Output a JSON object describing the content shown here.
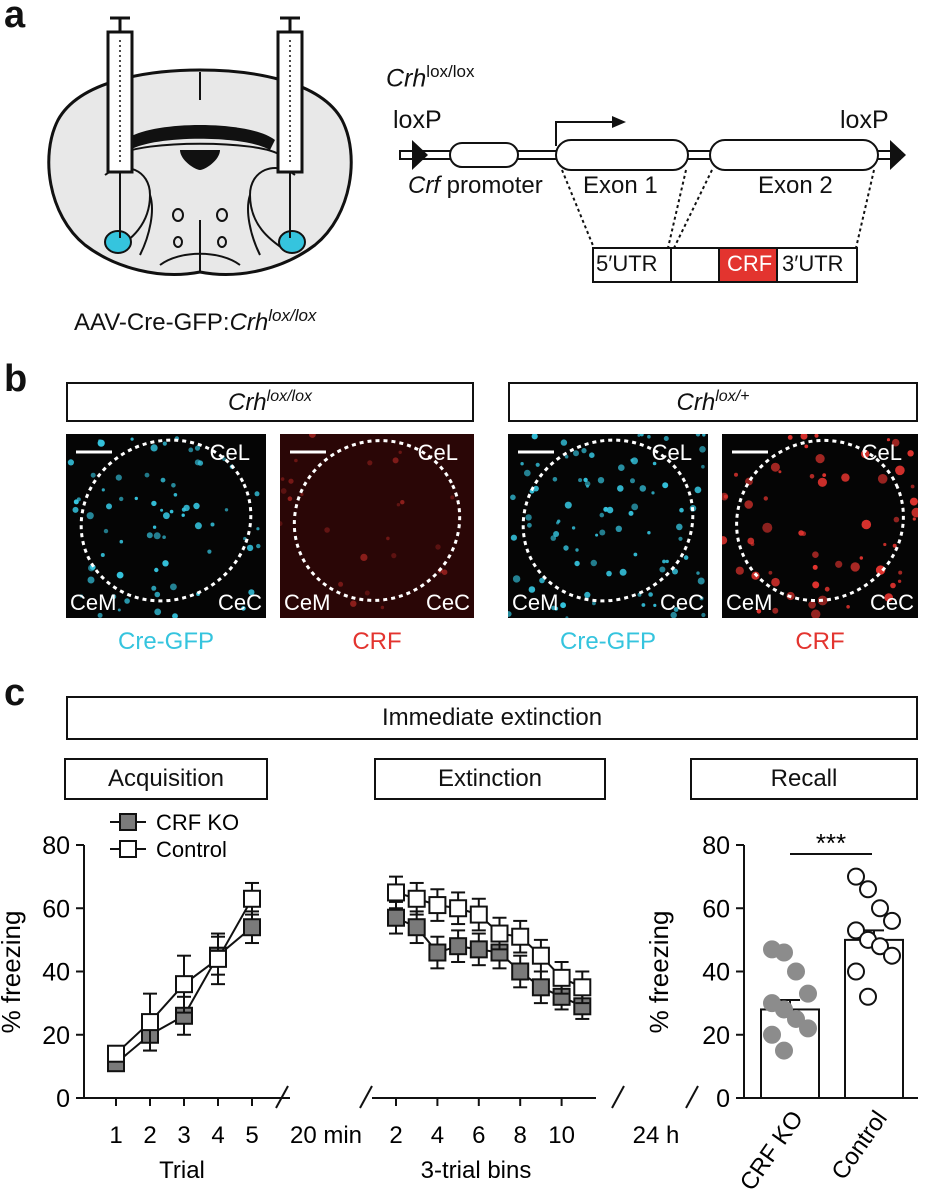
{
  "panels": {
    "a": "a",
    "b": "b",
    "c": "c"
  },
  "panel_a": {
    "brain_label_prefix": "AAV-Cre-GFP:",
    "brain_label_italic": "Crh",
    "brain_label_sup": "lox/lox",
    "construct_title_italic": "Crh",
    "construct_title_sup": "lox/lox",
    "loxp_left": "loxP",
    "loxp_right": "loxP",
    "promoter_italic": "Crf",
    "promoter_text": " promoter",
    "exon1": "Exon 1",
    "exon2": "Exon 2",
    "utr5": "5′UTR",
    "crf": "CRF",
    "utr3": "3′UTR"
  },
  "panel_b": {
    "group1_italic": "Crh",
    "group1_sup": "lox/lox",
    "group2_italic": "Crh",
    "group2_sup": "lox/+",
    "region_cel": "CeL",
    "region_cem": "CeM",
    "region_cec": "CeC",
    "caption_gfp": "Cre-GFP",
    "caption_crf": "CRF",
    "colors": {
      "gfp": "#35c4de",
      "crf": "#e3342f"
    }
  },
  "panel_c": {
    "header": "Immediate extinction",
    "phases": [
      "Acquisition",
      "Extinction",
      "Recall"
    ],
    "legend": [
      "CRF KO",
      "Control"
    ],
    "ylabel": "% freezing",
    "xlabel_trial": "Trial",
    "xlabel_bins": "3-trial bins",
    "gap1": "20 min",
    "gap2": "24 h",
    "significance": "***",
    "recall_categories": [
      "CRF KO",
      "Control"
    ]
  },
  "chart_data": [
    {
      "type": "line",
      "title": "Acquisition",
      "xlabel": "Trial",
      "ylabel": "% freezing",
      "ylim": [
        0,
        80
      ],
      "yticks": [
        0,
        20,
        40,
        60,
        80
      ],
      "x": [
        1,
        2,
        3,
        4,
        5
      ],
      "series": [
        {
          "name": "CRF KO",
          "values": [
            11,
            20,
            26,
            45,
            54
          ],
          "sem": [
            2,
            5,
            6,
            6,
            5
          ]
        },
        {
          "name": "Control",
          "values": [
            14,
            24,
            36,
            44,
            63
          ],
          "sem": [
            2,
            9,
            9,
            8,
            5
          ]
        }
      ]
    },
    {
      "type": "line",
      "title": "Extinction",
      "xlabel": "3-trial bins",
      "ylim": [
        0,
        80
      ],
      "xticks": [
        2,
        4,
        6,
        8,
        10
      ],
      "x": [
        1,
        2,
        3,
        4,
        5,
        6,
        7,
        8,
        9,
        10
      ],
      "series": [
        {
          "name": "CRF KO",
          "values": [
            57,
            54,
            46,
            48,
            47,
            46,
            40,
            35,
            32,
            29
          ],
          "sem": [
            5,
            5,
            5,
            5,
            5,
            5,
            5,
            5,
            4,
            4
          ]
        },
        {
          "name": "Control",
          "values": [
            65,
            63,
            61,
            60,
            58,
            52,
            51,
            45,
            38,
            35
          ],
          "sem": [
            5,
            5,
            5,
            5,
            5,
            5,
            5,
            5,
            5,
            5
          ]
        }
      ]
    },
    {
      "type": "bar",
      "title": "Recall",
      "ylabel": "% freezing",
      "ylim": [
        0,
        80
      ],
      "yticks": [
        0,
        20,
        40,
        60,
        80
      ],
      "categories": [
        "CRF KO",
        "Control"
      ],
      "values": [
        28,
        50
      ],
      "sem": [
        3,
        3
      ],
      "points": [
        [
          47,
          46,
          40,
          33,
          30,
          28,
          25,
          22,
          20,
          15
        ],
        [
          70,
          66,
          60,
          56,
          53,
          50,
          48,
          45,
          40,
          32
        ]
      ],
      "annotation": "***"
    }
  ]
}
